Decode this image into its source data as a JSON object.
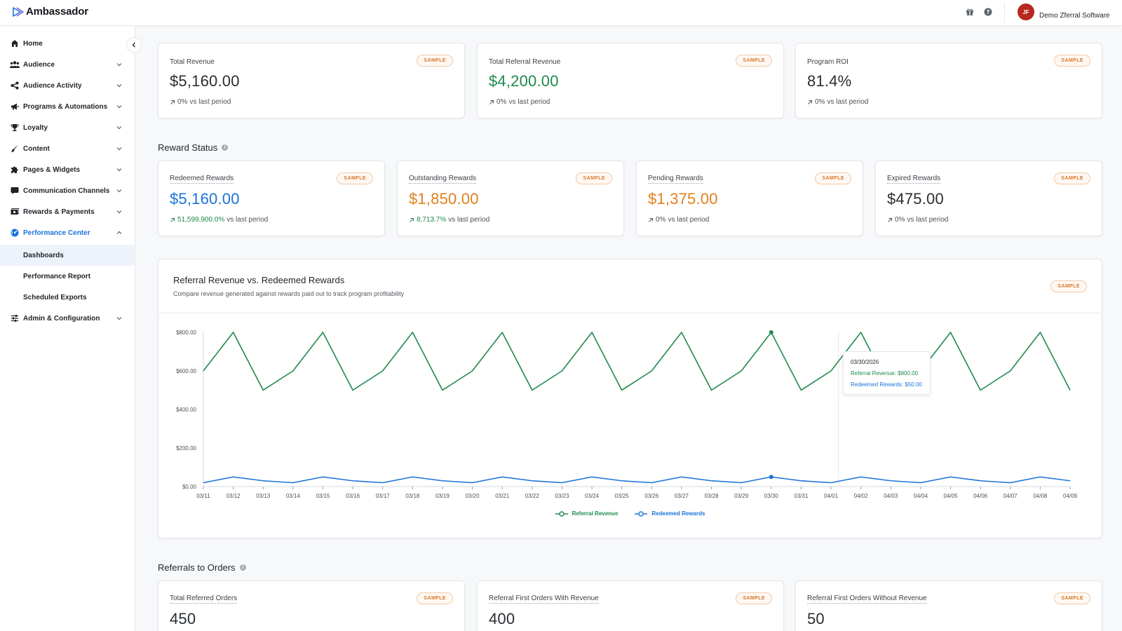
{
  "app": {
    "name": "Ambassador"
  },
  "account": {
    "initials": "JF",
    "name": "Demo Zferral Software"
  },
  "colors": {
    "green": "#1f8a4c",
    "blue": "#1a73d9",
    "orange": "#e0801b",
    "badge": "#d7772a"
  },
  "sidebar": {
    "items": [
      {
        "label": "Home",
        "icon": "home-icon"
      },
      {
        "label": "Audience",
        "icon": "users-icon"
      },
      {
        "label": "Audience Activity",
        "icon": "share-icon"
      },
      {
        "label": "Programs & Automations",
        "icon": "megaphone-icon"
      },
      {
        "label": "Loyalty",
        "icon": "trophy-icon"
      },
      {
        "label": "Content",
        "icon": "brush-icon"
      },
      {
        "label": "Pages & Widgets",
        "icon": "puzzle-icon"
      },
      {
        "label": "Communication Channels",
        "icon": "chat-icon"
      },
      {
        "label": "Rewards & Payments",
        "icon": "money-icon"
      },
      {
        "label": "Performance Center",
        "icon": "gauge-icon"
      },
      {
        "label": "Admin & Configuration",
        "icon": "sliders-icon"
      }
    ],
    "sub_items": [
      {
        "label": "Dashboards"
      },
      {
        "label": "Performance Report"
      },
      {
        "label": "Scheduled Exports"
      }
    ]
  },
  "badge_label": "SAMPLE",
  "top_kpis": [
    {
      "label": "Total Revenue",
      "value": "$5,160.00",
      "change": "0%",
      "suffix": "vs last period"
    },
    {
      "label": "Total Referral Revenue",
      "value": "$4,200.00",
      "change": "0%",
      "suffix": "vs last period"
    },
    {
      "label": "Program ROI",
      "value": "81.4%",
      "change": "0%",
      "suffix": "vs last period"
    }
  ],
  "reward_status": {
    "title": "Reward Status",
    "cards": [
      {
        "label": "Redeemed Rewards",
        "value": "$5,160.00",
        "change": "51,599,900.0%",
        "suffix": "vs last period"
      },
      {
        "label": "Outstanding Rewards",
        "value": "$1,850.00",
        "change": "8,713.7%",
        "suffix": "vs last period"
      },
      {
        "label": "Pending Rewards",
        "value": "$1,375.00",
        "change": "0%",
        "suffix": "vs last period"
      },
      {
        "label": "Expired Rewards",
        "value": "$475.00",
        "change": "0%",
        "suffix": "vs last period"
      }
    ]
  },
  "chart": {
    "title": "Referral Revenue vs. Redeemed Rewards",
    "subtitle": "Compare revenue generated against rewards paid out to track program profitability",
    "tooltip": {
      "date": "03/30/2026",
      "revenue_label": "Referral Revenue: $800.00",
      "rewards_label": "Redeemed Rewards: $50.00"
    }
  },
  "chart_data": {
    "type": "line",
    "x": [
      "03/11",
      "03/12",
      "03/13",
      "03/14",
      "03/15",
      "03/16",
      "03/17",
      "03/18",
      "03/19",
      "03/20",
      "03/21",
      "03/22",
      "03/23",
      "03/24",
      "03/25",
      "03/26",
      "03/27",
      "03/28",
      "03/29",
      "03/30",
      "03/31",
      "04/01",
      "04/02",
      "04/03",
      "04/04",
      "04/05",
      "04/06",
      "04/07",
      "04/08",
      "04/09"
    ],
    "series": [
      {
        "name": "Referral Revenue",
        "color": "#1f8a4c",
        "values": [
          600,
          800,
          500,
          600,
          800,
          500,
          600,
          800,
          500,
          600,
          800,
          500,
          600,
          800,
          500,
          600,
          800,
          500,
          600,
          800,
          500,
          600,
          800,
          500,
          600,
          800,
          500,
          600,
          800,
          500
        ]
      },
      {
        "name": "Redeemed Rewards",
        "color": "#1a73d9",
        "values": [
          20,
          50,
          30,
          20,
          50,
          30,
          20,
          50,
          30,
          20,
          50,
          30,
          20,
          50,
          30,
          20,
          50,
          30,
          20,
          50,
          30,
          20,
          50,
          30,
          20,
          50,
          30,
          20,
          50,
          30
        ]
      }
    ],
    "yticks": [
      "$0.00",
      "$200.00",
      "$400.00",
      "$600.00",
      "$800.00"
    ],
    "ytick_values": [
      0,
      200,
      400,
      600,
      800
    ],
    "ylim": [
      0,
      800
    ],
    "highlight_index": 19,
    "legend_placement": "bottom-center"
  },
  "referrals_to_orders": {
    "title": "Referrals to Orders",
    "cards": [
      {
        "label": "Total Referred Orders",
        "value": "450"
      },
      {
        "label": "Referral First Orders With Revenue",
        "value": "400"
      },
      {
        "label": "Referral First Orders Without Revenue",
        "value": "50"
      }
    ]
  }
}
